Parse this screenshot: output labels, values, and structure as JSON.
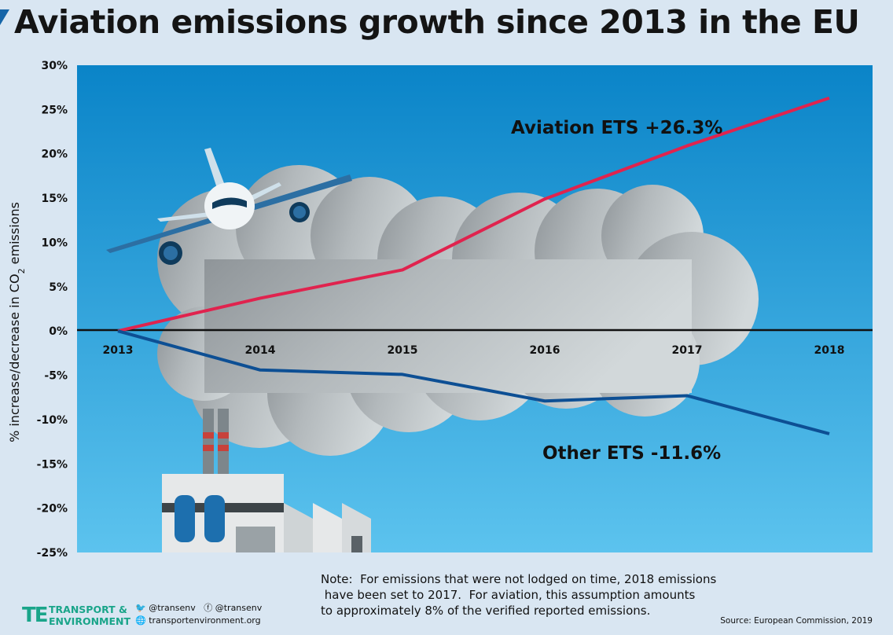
{
  "title": "Aviation emissions growth since 2013 in the EU",
  "chart_data": {
    "type": "line",
    "x": [
      "2013",
      "2014",
      "2015",
      "2016",
      "2017",
      "2018"
    ],
    "series": [
      {
        "name": "Aviation ETS +26.3%",
        "values": [
          0,
          3.7,
          6.9,
          14.9,
          20.9,
          26.3
        ],
        "color": "#e0234e"
      },
      {
        "name": "Other ETS -11.6%",
        "values": [
          0,
          -4.4,
          -4.9,
          -7.9,
          -7.3,
          -11.6
        ],
        "color": "#0d4f94"
      }
    ],
    "ylim": [
      -25,
      30
    ],
    "yticks": [
      "30%",
      "25%",
      "20%",
      "15%",
      "10%",
      "5%",
      "0%",
      "-5%",
      "-10%",
      "-15%",
      "-20%",
      "-25%"
    ],
    "ytick_values": [
      30,
      25,
      20,
      15,
      10,
      5,
      0,
      -5,
      -10,
      -15,
      -20,
      -25
    ],
    "ylabel": "% increase/decrease in CO2 emissions",
    "xlabel": "",
    "grid": false,
    "legend": "inline labels"
  },
  "note": "Note:  For emissions that were not lodged on time, 2018 emissions\n have been set to 2017.  For aviation, this assumption amounts\nto approximately 8% of the verified reported emissions.",
  "source": "Source:  European Commission, 2019",
  "brand": {
    "logo": "TE",
    "name": "TRANSPORT &\nENVIRONMENT"
  },
  "social": {
    "twitter": "@transenv",
    "facebook": "@transenv",
    "website": "transportenvironment.org"
  },
  "colors": {
    "sky_top": "#0a84c8",
    "sky_bottom": "#5cc3ee",
    "aviation": "#e0234e",
    "other": "#0d4f94",
    "brand": "#1aa58a"
  }
}
